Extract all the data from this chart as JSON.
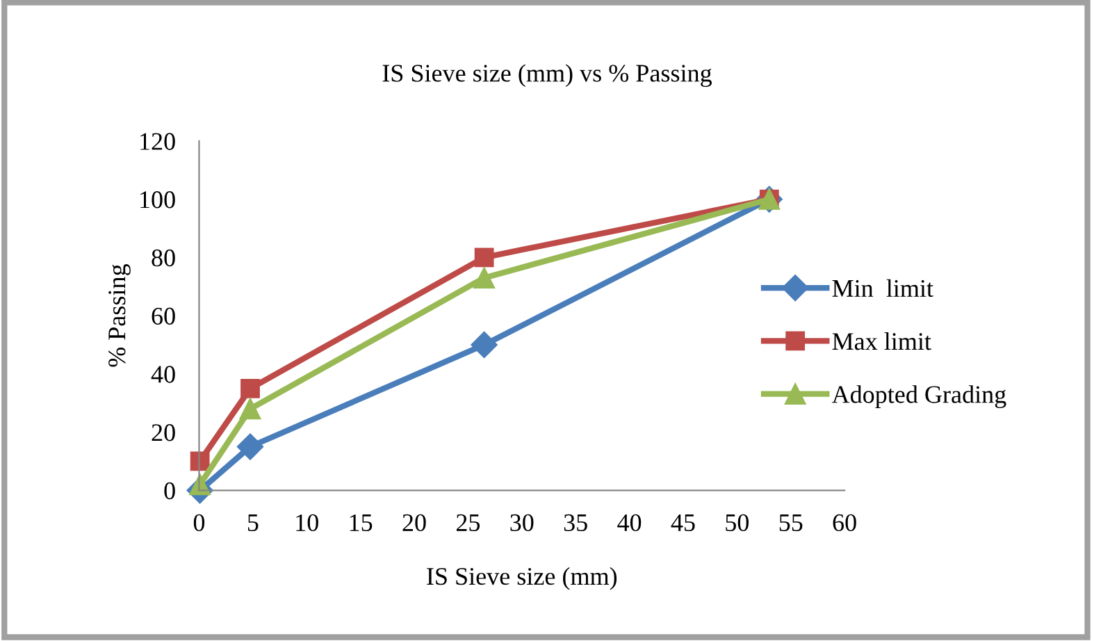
{
  "chart_data": {
    "type": "line",
    "title": "IS Sieve size (mm) vs % Passing",
    "xlabel": "IS Sieve size (mm)",
    "ylabel": "% Passing",
    "xlim": [
      0,
      60
    ],
    "xticks": [
      0,
      5,
      10,
      15,
      20,
      25,
      30,
      35,
      40,
      45,
      50,
      55,
      60
    ],
    "ylim": [
      0,
      120
    ],
    "yticks": [
      0,
      20,
      40,
      60,
      80,
      100,
      120
    ],
    "grid": false,
    "legend": "right",
    "x": [
      0.075,
      4.75,
      26.5,
      53
    ],
    "series": [
      {
        "name": "Min  limit",
        "color": "#4a7ebb",
        "marker": "diamond",
        "values": [
          0,
          15,
          50,
          100
        ]
      },
      {
        "name": "Max limit",
        "color": "#be4b48",
        "marker": "square",
        "values": [
          10,
          35,
          80,
          100
        ]
      },
      {
        "name": "Adopted Grading",
        "color": "#98b954",
        "marker": "triangle",
        "values": [
          2,
          28,
          73,
          100
        ]
      }
    ]
  }
}
